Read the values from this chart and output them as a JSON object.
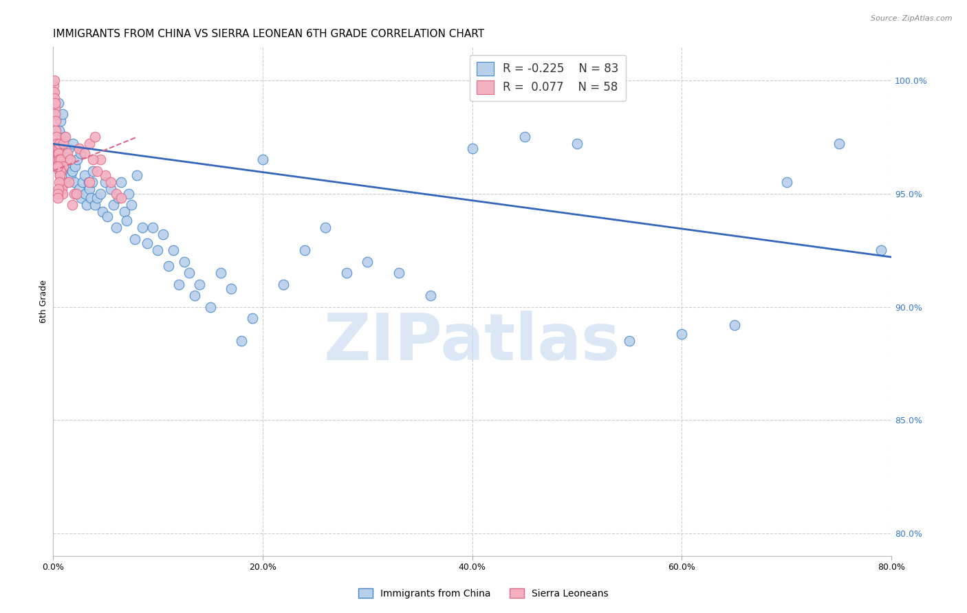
{
  "title": "IMMIGRANTS FROM CHINA VS SIERRA LEONEAN 6TH GRADE CORRELATION CHART",
  "source": "Source: ZipAtlas.com",
  "ylabel": "6th Grade",
  "x_tick_labels": [
    "0.0%",
    "20.0%",
    "40.0%",
    "60.0%",
    "80.0%"
  ],
  "x_tick_values": [
    0.0,
    20.0,
    40.0,
    60.0,
    80.0
  ],
  "y_right_labels": [
    "100.0%",
    "95.0%",
    "90.0%",
    "85.0%",
    "80.0%"
  ],
  "y_right_values": [
    100.0,
    95.0,
    90.0,
    85.0,
    80.0
  ],
  "xlim": [
    0.0,
    80.0
  ],
  "ylim": [
    79.0,
    101.5
  ],
  "legend_r_blue": "-0.225",
  "legend_n_blue": "83",
  "legend_r_pink": "0.077",
  "legend_n_pink": "58",
  "blue_color": "#b8d0ea",
  "pink_color": "#f5b0c0",
  "blue_edge_color": "#4488cc",
  "pink_edge_color": "#e06888",
  "blue_line_color": "#3366bb",
  "pink_line_color": "#dd6688",
  "background_color": "#ffffff",
  "grid_color": "#cccccc",
  "legend_label_blue": "Immigrants from China",
  "legend_label_pink": "Sierra Leoneans",
  "blue_x": [
    0.3,
    0.5,
    0.6,
    0.7,
    0.8,
    0.9,
    1.0,
    1.1,
    1.2,
    1.3,
    1.4,
    1.5,
    1.6,
    1.7,
    1.8,
    1.9,
    2.0,
    2.1,
    2.2,
    2.3,
    2.5,
    2.6,
    2.7,
    2.8,
    3.0,
    3.1,
    3.2,
    3.4,
    3.5,
    3.6,
    3.7,
    3.8,
    4.0,
    4.2,
    4.5,
    4.7,
    5.0,
    5.2,
    5.5,
    5.8,
    6.0,
    6.2,
    6.5,
    6.8,
    7.0,
    7.2,
    7.5,
    7.8,
    8.0,
    8.5,
    9.0,
    9.5,
    10.0,
    10.5,
    11.0,
    11.5,
    12.0,
    12.5,
    13.0,
    13.5,
    14.0,
    15.0,
    16.0,
    17.0,
    18.0,
    19.0,
    20.0,
    22.0,
    24.0,
    26.0,
    28.0,
    30.0,
    33.0,
    36.0,
    40.0,
    45.0,
    50.0,
    55.0,
    60.0,
    65.0,
    70.0,
    75.0,
    79.0
  ],
  "blue_y": [
    98.5,
    99.0,
    97.8,
    98.2,
    97.0,
    98.5,
    96.8,
    97.5,
    96.2,
    96.8,
    95.5,
    97.0,
    96.5,
    95.8,
    96.0,
    97.2,
    95.5,
    96.2,
    95.0,
    96.5,
    95.2,
    96.8,
    94.8,
    95.5,
    95.8,
    95.0,
    94.5,
    95.5,
    95.2,
    94.8,
    95.5,
    96.0,
    94.5,
    94.8,
    95.0,
    94.2,
    95.5,
    94.0,
    95.2,
    94.5,
    93.5,
    94.8,
    95.5,
    94.2,
    93.8,
    95.0,
    94.5,
    93.0,
    95.8,
    93.5,
    92.8,
    93.5,
    92.5,
    93.2,
    91.8,
    92.5,
    91.0,
    92.0,
    91.5,
    90.5,
    91.0,
    90.0,
    91.5,
    90.8,
    88.5,
    89.5,
    96.5,
    91.0,
    92.5,
    93.5,
    91.5,
    92.0,
    91.5,
    90.5,
    97.0,
    97.5,
    97.2,
    88.5,
    88.8,
    89.2,
    95.5,
    97.2,
    92.5
  ],
  "pink_x": [
    0.05,
    0.08,
    0.1,
    0.12,
    0.15,
    0.18,
    0.2,
    0.22,
    0.25,
    0.28,
    0.3,
    0.32,
    0.35,
    0.38,
    0.4,
    0.42,
    0.45,
    0.48,
    0.5,
    0.52,
    0.55,
    0.58,
    0.6,
    0.62,
    0.65,
    0.7,
    0.75,
    0.8,
    0.85,
    0.9,
    1.0,
    1.2,
    1.4,
    1.6,
    1.8,
    2.0,
    2.5,
    3.0,
    3.5,
    4.0,
    4.5,
    5.0,
    5.5,
    6.0,
    6.5,
    3.5,
    3.8,
    4.2,
    2.2,
    1.5,
    0.95,
    0.72,
    0.68,
    0.55,
    0.52,
    0.48,
    0.45,
    0.42
  ],
  "pink_y": [
    99.5,
    99.8,
    100.0,
    99.5,
    99.2,
    98.8,
    98.5,
    99.0,
    98.2,
    97.8,
    97.5,
    97.2,
    96.8,
    97.0,
    96.5,
    96.8,
    96.2,
    96.5,
    97.0,
    96.8,
    97.2,
    96.5,
    96.0,
    96.2,
    95.8,
    96.5,
    96.0,
    95.5,
    95.2,
    95.0,
    97.2,
    97.5,
    96.8,
    96.5,
    94.5,
    95.0,
    97.0,
    96.8,
    97.2,
    97.5,
    96.5,
    95.8,
    95.5,
    95.0,
    94.8,
    95.5,
    96.5,
    96.0,
    95.0,
    95.5,
    96.2,
    96.0,
    95.8,
    95.5,
    95.2,
    95.0,
    94.8,
    96.2
  ],
  "blue_trend_x": [
    0.0,
    80.0
  ],
  "blue_trend_y": [
    97.2,
    92.2
  ],
  "pink_trend_x": [
    0.0,
    8.0
  ],
  "pink_trend_y": [
    96.0,
    97.5
  ],
  "watermark_text": "ZIPatlas",
  "watermark_color": "#ccddf0",
  "title_fontsize": 11,
  "axis_label_fontsize": 9,
  "tick_fontsize": 9,
  "legend_fontsize": 12
}
